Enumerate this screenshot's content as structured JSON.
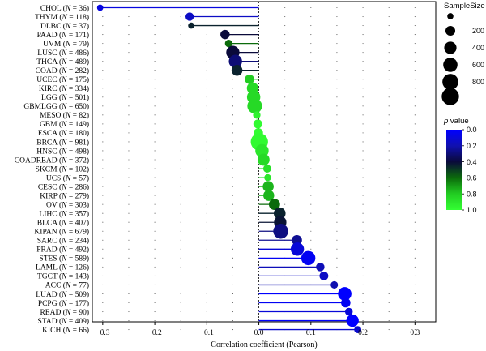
{
  "chart_data": {
    "type": "scatter",
    "style": "lollipop",
    "xlabel": "Correlation coefficient (Pearson)",
    "xlim": [
      -0.32,
      0.34
    ],
    "xticks": [
      -0.3,
      -0.2,
      -0.1,
      0.0,
      0.1,
      0.2,
      0.3
    ],
    "xtick_labels": [
      "−0.3",
      "−0.2",
      "−0.1",
      "0.0",
      "0.1",
      "0.2",
      "0.3"
    ],
    "grid": "dotted",
    "zero_line": "dashed",
    "size_legend": {
      "title": "SampleSize",
      "placement": "right",
      "values": [
        200,
        400,
        600,
        800
      ],
      "labels": [
        "200",
        "400",
        "600",
        "800"
      ]
    },
    "color_legend": {
      "title_prefix": "p",
      "title_suffix": " value",
      "placement": "right",
      "range": [
        0.0,
        1.0
      ],
      "ticks": [
        0.0,
        0.2,
        0.4,
        0.6,
        0.8,
        1.0
      ],
      "tick_labels": [
        "0.0",
        "0.2",
        "0.4",
        "0.6",
        "0.8",
        "1.0"
      ],
      "colors": [
        "#0000ff",
        "#1010b0",
        "#0a0a3a",
        "#0b6b0b",
        "#22cc22",
        "#33ff33"
      ]
    },
    "points": [
      {
        "name": "CHOL",
        "n": 36,
        "r": -0.305,
        "p": 0.08
      },
      {
        "name": "THYM",
        "n": 118,
        "r": -0.133,
        "p": 0.15
      },
      {
        "name": "DLBC",
        "n": 37,
        "r": -0.13,
        "p": 0.45
      },
      {
        "name": "PAAD",
        "n": 171,
        "r": -0.065,
        "p": 0.4
      },
      {
        "name": "UVM",
        "n": 79,
        "r": -0.058,
        "p": 0.6
      },
      {
        "name": "LUSC",
        "n": 486,
        "r": -0.05,
        "p": 0.4
      },
      {
        "name": "THCA",
        "n": 489,
        "r": -0.045,
        "p": 0.3
      },
      {
        "name": "COAD",
        "n": 282,
        "r": -0.042,
        "p": 0.45
      },
      {
        "name": "UCEC",
        "n": 175,
        "r": -0.018,
        "p": 0.8
      },
      {
        "name": "KIRC",
        "n": 334,
        "r": -0.012,
        "p": 0.85
      },
      {
        "name": "LGG",
        "n": 501,
        "r": -0.01,
        "p": 0.85
      },
      {
        "name": "GBMLGG",
        "n": 650,
        "r": -0.008,
        "p": 0.85
      },
      {
        "name": "MESO",
        "n": 82,
        "r": -0.004,
        "p": 0.95
      },
      {
        "name": "GBM",
        "n": 149,
        "r": -0.002,
        "p": 0.98
      },
      {
        "name": "ESCA",
        "n": 180,
        "r": -0.001,
        "p": 0.99
      },
      {
        "name": "BRCA",
        "n": 981,
        "r": 0.001,
        "p": 0.98
      },
      {
        "name": "HNSC",
        "n": 498,
        "r": 0.006,
        "p": 0.9
      },
      {
        "name": "COADREAD",
        "n": 372,
        "r": 0.009,
        "p": 0.85
      },
      {
        "name": "SKCM",
        "n": 102,
        "r": 0.016,
        "p": 0.88
      },
      {
        "name": "UCS",
        "n": 57,
        "r": 0.017,
        "p": 0.9
      },
      {
        "name": "CESC",
        "n": 286,
        "r": 0.018,
        "p": 0.75
      },
      {
        "name": "KIRP",
        "n": 279,
        "r": 0.019,
        "p": 0.75
      },
      {
        "name": "OV",
        "n": 303,
        "r": 0.03,
        "p": 0.6
      },
      {
        "name": "LIHC",
        "n": 357,
        "r": 0.04,
        "p": 0.45
      },
      {
        "name": "BLCA",
        "n": 407,
        "r": 0.041,
        "p": 0.42
      },
      {
        "name": "KIPAN",
        "n": 679,
        "r": 0.042,
        "p": 0.28
      },
      {
        "name": "SARC",
        "n": 234,
        "r": 0.073,
        "p": 0.25
      },
      {
        "name": "PRAD",
        "n": 492,
        "r": 0.074,
        "p": 0.1
      },
      {
        "name": "STES",
        "n": 589,
        "r": 0.095,
        "p": 0.03
      },
      {
        "name": "LAML",
        "n": 126,
        "r": 0.118,
        "p": 0.18
      },
      {
        "name": "TGCT",
        "n": 143,
        "r": 0.125,
        "p": 0.15
      },
      {
        "name": "ACC",
        "n": 77,
        "r": 0.145,
        "p": 0.2
      },
      {
        "name": "LUAD",
        "n": 509,
        "r": 0.165,
        "p": 0.0
      },
      {
        "name": "PCPG",
        "n": 177,
        "r": 0.167,
        "p": 0.03
      },
      {
        "name": "READ",
        "n": 90,
        "r": 0.173,
        "p": 0.1
      },
      {
        "name": "STAD",
        "n": 409,
        "r": 0.18,
        "p": 0.0
      },
      {
        "name": "KICH",
        "n": 66,
        "r": 0.19,
        "p": 0.13
      }
    ]
  }
}
